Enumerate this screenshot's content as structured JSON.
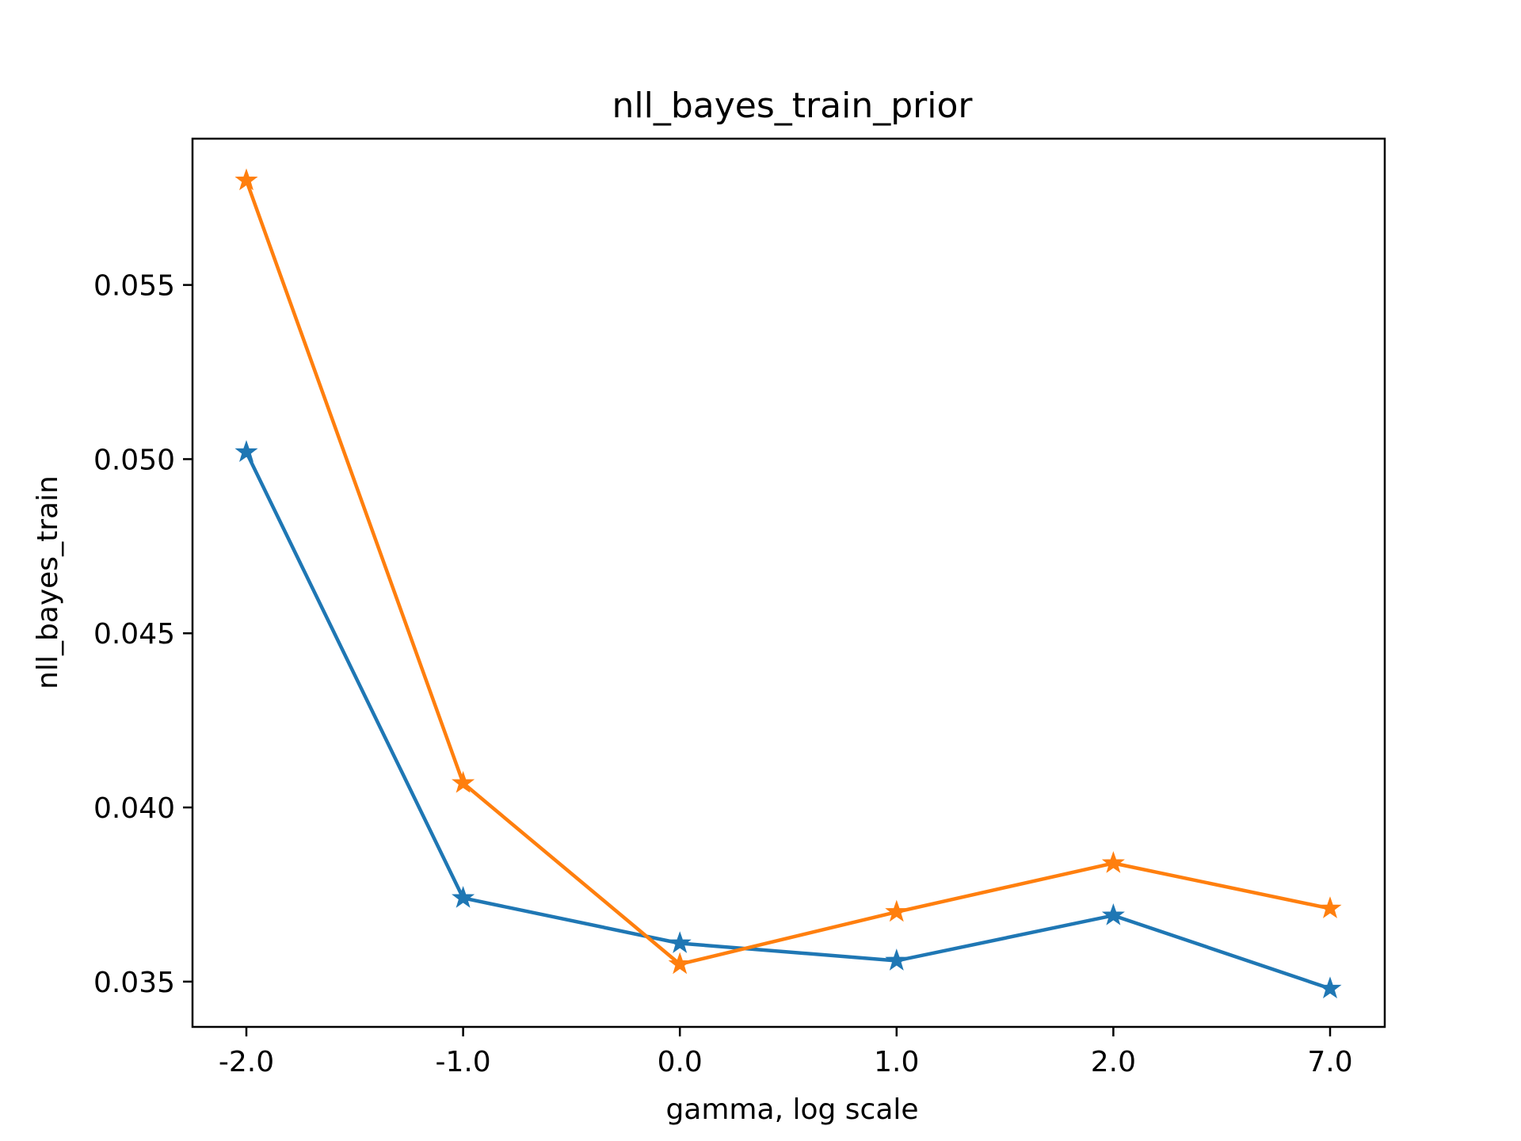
{
  "chart_data": {
    "type": "line",
    "title": "nll_bayes_train_prior",
    "xlabel": "gamma, log scale",
    "ylabel": "nll_bayes_train",
    "categories": [
      "-2.0",
      "-1.0",
      "0.0",
      "1.0",
      "2.0",
      "7.0"
    ],
    "ylim": [
      0.0337,
      0.0592
    ],
    "yticks": [
      "0.035",
      "0.040",
      "0.045",
      "0.050",
      "0.055"
    ],
    "grid": false,
    "marker": "star",
    "series": [
      {
        "color": "#1f77b4",
        "values": [
          0.0502,
          0.0374,
          0.0361,
          0.0356,
          0.0369,
          0.0348
        ]
      },
      {
        "color": "#ff7f0e",
        "values": [
          0.058,
          0.0407,
          0.0355,
          0.037,
          0.0384,
          0.0371
        ]
      }
    ]
  }
}
